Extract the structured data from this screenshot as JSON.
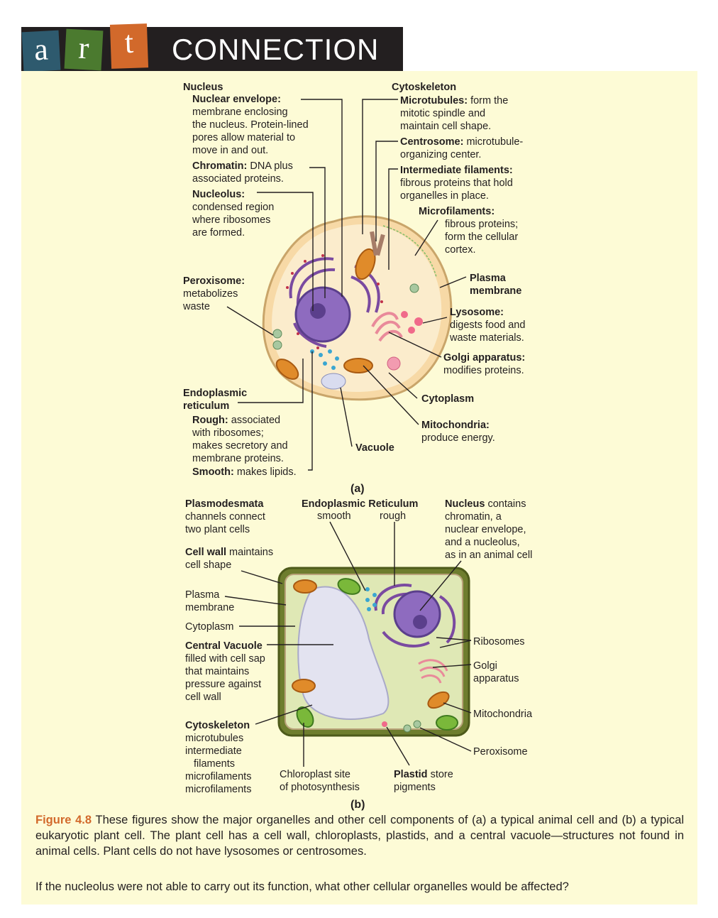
{
  "banner": {
    "letters": [
      "a",
      "r",
      "t"
    ],
    "word": "CONNECTION"
  },
  "animal": {
    "nucleus": {
      "title": "Nucleus",
      "envelope_term": "Nuclear envelope:",
      "envelope_desc": [
        "membrane enclosing",
        "the nucleus. Protein-lined",
        "pores allow material to",
        "move in and out."
      ],
      "chromatin_term": "Chromatin:",
      "chromatin_desc1": " DNA plus",
      "chromatin_desc2": "associated proteins.",
      "nucleolus_term": "Nucleolus:",
      "nucleolus_desc": [
        "condensed region",
        "where ribosomes",
        "are formed."
      ]
    },
    "cytoskeleton": {
      "title": "Cytoskeleton",
      "microtubules_term": "Microtubules:",
      "microtubules_desc1": " form the",
      "microtubules_desc": [
        "mitotic spindle and",
        "maintain cell shape."
      ],
      "centrosome_term": "Centrosome:",
      "centrosome_desc1": " microtubule-",
      "centrosome_desc2": "organizing center.",
      "intermediate_term": "Intermediate filaments:",
      "intermediate_desc": [
        "fibrous proteins that hold",
        "organelles in place."
      ],
      "microfilaments_term": "Microfilaments:",
      "microfilaments_desc": [
        "fibrous proteins;",
        "form the cellular",
        "cortex."
      ]
    },
    "peroxisome": {
      "term": "Peroxisome:",
      "desc": [
        "metabolizes",
        "waste"
      ]
    },
    "plasma_membrane": [
      "Plasma",
      "membrane"
    ],
    "lysosome": {
      "term": "Lysosome:",
      "desc": [
        "digests food and",
        "waste materials."
      ]
    },
    "golgi": {
      "term": "Golgi apparatus:",
      "desc": "modifies proteins."
    },
    "cytoplasm": "Cytoplasm",
    "mitochondria": {
      "term": "Mitochondria:",
      "desc": "produce energy."
    },
    "er": {
      "title": [
        "Endoplasmic",
        "reticulum"
      ],
      "rough_term": "Rough:",
      "rough_desc1": " associated",
      "rough_desc": [
        "with ribosomes;",
        "makes secretory and",
        "membrane proteins."
      ],
      "smooth_term": "Smooth:",
      "smooth_desc": " makes lipids."
    },
    "vacuole": "Vacuole",
    "sublabel": "(a)"
  },
  "plant": {
    "plasmodesmata": {
      "term": "Plasmodesmata",
      "desc": [
        "channels connect",
        "two plant cells"
      ]
    },
    "er": {
      "term": "Endoplasmic Reticulum",
      "smooth": "smooth",
      "rough": "rough"
    },
    "nucleus": {
      "term": "Nucleus",
      "desc1": " contains",
      "desc": [
        "chromatin, a",
        "nuclear envelope,",
        "and a nucleolus,",
        "as in an animal cell"
      ]
    },
    "cell_wall": {
      "term": "Cell wall",
      "desc1": " maintains",
      "desc2": "cell shape"
    },
    "plasma_membrane": [
      "Plasma",
      "membrane"
    ],
    "cytoplasm": "Cytoplasm",
    "central_vacuole": {
      "term": "Central Vacuole",
      "desc": [
        "filled with cell sap",
        "that maintains",
        "pressure against",
        "cell wall"
      ]
    },
    "ribosomes": "Ribosomes",
    "golgi": [
      "Golgi",
      "apparatus"
    ],
    "mitochondria": "Mitochondria",
    "peroxisome": "Peroxisome",
    "cytoskeleton": {
      "term": "Cytoskeleton",
      "desc": [
        "microtubules",
        "intermediate",
        "filaments",
        "microfilaments",
        "microfilaments"
      ]
    },
    "chloroplast": [
      "Chloroplast site",
      "of photosynthesis"
    ],
    "plastid": {
      "term": "Plastid",
      "desc1": " store",
      "desc2": "pigments"
    },
    "sublabel": "(b)"
  },
  "caption": {
    "figure_number": "Figure 4.8",
    "text": " These figures show the major organelles and other cell components of (a) a typical animal cell and (b) a typical eukaryotic plant cell. The plant cell has a cell wall, chloroplasts, plastids, and a central vacuole—structures not found in animal cells. Plant cells do not have lysosomes or centrosomes."
  },
  "question": "If the nucleolus were not able to carry out its function, what other cellular organelles would be affected?",
  "colors": {
    "banner_bg": "#231f20",
    "tile_a": "#2e5a6e",
    "tile_r": "#4b7a2f",
    "tile_t": "#d2692b",
    "panel": "#fdfbd6",
    "figure_number": "#d2692b"
  }
}
